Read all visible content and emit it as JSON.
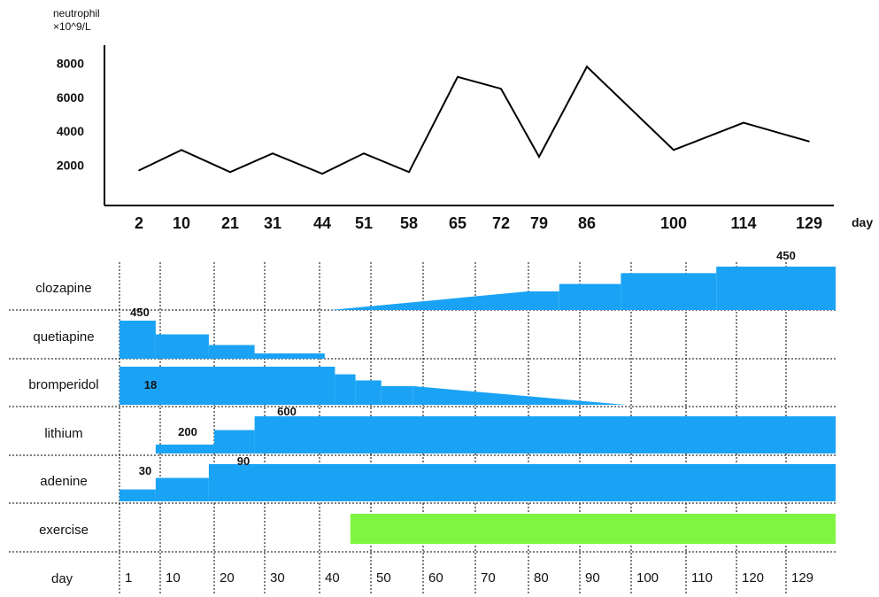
{
  "chart_data": [
    {
      "type": "line",
      "ylabel_lines": [
        "neutrophil",
        "×10^9/L"
      ],
      "xlabel": "day",
      "yticks": [
        2000,
        4000,
        6000,
        8000
      ],
      "x_tick_labels": [
        "2",
        "10",
        "21",
        "31",
        "44",
        "51",
        "58",
        "65",
        "72",
        "79",
        "86",
        "100",
        "114",
        "129"
      ],
      "ylim": [
        0,
        9200
      ],
      "series": [
        {
          "x": [
            2,
            10,
            21,
            31,
            44,
            51,
            58,
            65,
            72,
            79,
            86,
            100,
            114,
            129
          ],
          "values": [
            1700,
            2900,
            1600,
            2700,
            1500,
            2700,
            1600,
            7200,
            6500,
            2500,
            7800,
            2900,
            4500,
            3400
          ]
        }
      ],
      "color": "#000000"
    },
    {
      "type": "area",
      "rows": [
        "clozapine",
        "quetiapine",
        "bromperidol",
        "lithium",
        "adenine",
        "exercise"
      ],
      "xlabel": "day",
      "day_tick_labels": [
        "1",
        "10",
        "20",
        "30",
        "40",
        "50",
        "60",
        "70",
        "80",
        "90",
        "100",
        "110",
        "120",
        "129"
      ],
      "series": [
        {
          "name": "clozapine",
          "color": "#1aa3f5",
          "annotations": [
            {
              "label": "450"
            }
          ],
          "segments": [
            {
              "start": 42,
              "end": 80,
              "level": [
                0,
                0.43
              ]
            },
            {
              "start": 80,
              "end": 86,
              "level": 0.43
            },
            {
              "start": 86,
              "end": 98,
              "level": 0.6
            },
            {
              "start": 98,
              "end": 116,
              "level": 0.85
            },
            {
              "start": 116,
              "end": 134,
              "level": 1.0
            }
          ]
        },
        {
          "name": "quetiapine",
          "color": "#1aa3f5",
          "annotations": [
            {
              "label": "450"
            }
          ],
          "segments": [
            {
              "start": 1,
              "end": 9,
              "level": 1.0
            },
            {
              "start": 9,
              "end": 19,
              "level": 0.64
            },
            {
              "start": 19,
              "end": 28,
              "level": 0.36
            },
            {
              "start": 28,
              "end": 41,
              "level": 0.14
            }
          ]
        },
        {
          "name": "bromperidol",
          "color": "#1aa3f5",
          "annotations": [
            {
              "label": "18"
            }
          ],
          "segments": [
            {
              "start": 1,
              "end": 43,
              "level": 1.0
            },
            {
              "start": 43,
              "end": 47,
              "level": 0.8
            },
            {
              "start": 47,
              "end": 52,
              "level": 0.64
            },
            {
              "start": 52,
              "end": 58,
              "level": 0.49
            },
            {
              "start": 58,
              "end": 99,
              "level": [
                0.49,
                0
              ]
            }
          ]
        },
        {
          "name": "lithium",
          "color": "#1aa3f5",
          "annotations": [
            {
              "label": "200"
            },
            {
              "label": "600"
            }
          ],
          "segments": [
            {
              "start": 9,
              "end": 20,
              "level": 0.24
            },
            {
              "start": 20,
              "end": 28,
              "level": 0.63
            },
            {
              "start": 28,
              "end": 134,
              "level": 1.0
            }
          ]
        },
        {
          "name": "adenine",
          "color": "#1aa3f5",
          "annotations": [
            {
              "label": "30"
            },
            {
              "label": "90"
            }
          ],
          "segments": [
            {
              "start": 1,
              "end": 9,
              "level": 0.32
            },
            {
              "start": 9,
              "end": 19,
              "level": 0.63
            },
            {
              "start": 19,
              "end": 134,
              "level": 1.0
            }
          ]
        },
        {
          "name": "exercise",
          "color": "#7ff542",
          "segments": [
            {
              "start": 46,
              "end": 134,
              "level": 1.0
            }
          ]
        }
      ]
    }
  ]
}
